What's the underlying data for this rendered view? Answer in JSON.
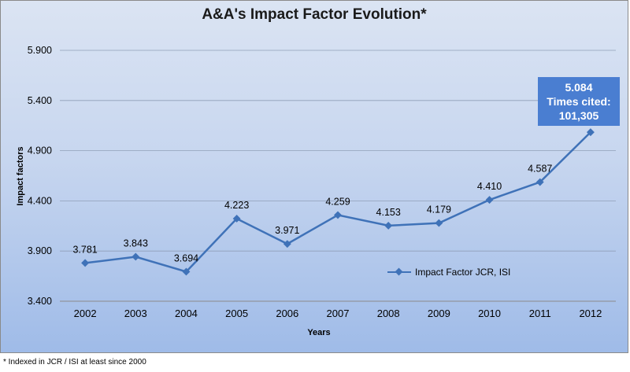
{
  "chart_data": {
    "type": "line",
    "title": "A&A's Impact Factor Evolution*",
    "xlabel": "Years",
    "ylabel": "Impact factors",
    "categories": [
      "2002",
      "2003",
      "2004",
      "2005",
      "2006",
      "2007",
      "2008",
      "2009",
      "2010",
      "2011",
      "2012"
    ],
    "series": [
      {
        "name": "Impact Factor JCR, ISI",
        "values": [
          3.781,
          3.843,
          3.694,
          4.223,
          3.971,
          4.259,
          4.153,
          4.179,
          4.41,
          4.587,
          5.084
        ],
        "labels": [
          "3.781",
          "3.843",
          "3.694",
          "4.223",
          "3.971",
          "4.259",
          "4.153",
          "4.179",
          "4.410",
          "4.587",
          ""
        ]
      }
    ],
    "y_ticks": [
      "3.400",
      "3.900",
      "4.400",
      "4.900",
      "5.400",
      "5.900"
    ],
    "ylim": [
      3.4,
      5.9
    ],
    "grid": true,
    "legend_position": "bottom-right",
    "line_color": "#3f72b8",
    "callout": {
      "lines": [
        "5.084",
        "Times cited:",
        "101,305"
      ],
      "color": "#4a7ed1"
    }
  },
  "footnote": "* Indexed  in JCR / ISI at least since 2000"
}
